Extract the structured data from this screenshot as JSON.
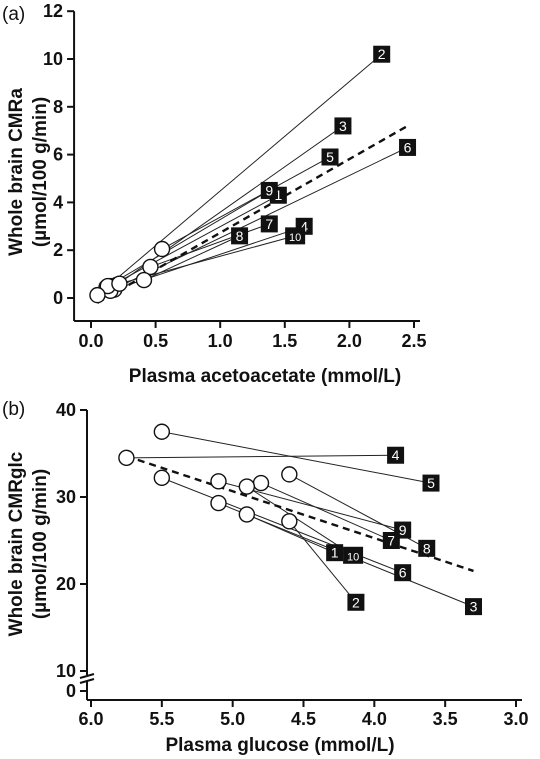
{
  "chart_data": [
    {
      "type": "scatter",
      "panel_label": "(a)",
      "title": "",
      "xlabel": "Plasma acetoacetate (mmol/L)",
      "ylabel_line1": "Whole brain CMRa",
      "ylabel_line2": "(µmol/100 g/min)",
      "xlim": [
        -0.1,
        2.5
      ],
      "ylim": [
        -0.5,
        12
      ],
      "x_ticks": [
        0.0,
        0.5,
        1.0,
        1.5,
        2.0,
        2.5
      ],
      "x_tick_labels": [
        "0.0",
        "0.5",
        "1.0",
        "1.5",
        "2.0",
        "2.5"
      ],
      "y_ticks": [
        0,
        2,
        4,
        6,
        8,
        10,
        12
      ],
      "y_tick_labels": [
        "0",
        "2",
        "4",
        "6",
        "8",
        "10",
        "12"
      ],
      "regression": {
        "x": [
          0.05,
          2.45
        ],
        "y": [
          -0.2,
          7.2
        ],
        "style": "dashed"
      },
      "subjects": [
        {
          "id": "1",
          "baseline": [
            0.15,
            0.5
          ],
          "ketosis": [
            1.45,
            4.3
          ]
        },
        {
          "id": "2",
          "baseline": [
            0.12,
            0.45
          ],
          "ketosis": [
            2.25,
            10.2
          ]
        },
        {
          "id": "3",
          "baseline": [
            0.2,
            0.55
          ],
          "ketosis": [
            1.95,
            7.2
          ]
        },
        {
          "id": "4",
          "baseline": [
            0.18,
            0.35
          ],
          "ketosis": [
            1.65,
            3.0
          ]
        },
        {
          "id": "5",
          "baseline": [
            0.55,
            2.05
          ],
          "ketosis": [
            1.85,
            5.9
          ]
        },
        {
          "id": "6",
          "baseline": [
            0.15,
            0.3
          ],
          "ketosis": [
            2.45,
            6.3
          ]
        },
        {
          "id": "7",
          "baseline": [
            0.46,
            1.3
          ],
          "ketosis": [
            1.38,
            3.1
          ]
        },
        {
          "id": "8",
          "baseline": [
            0.41,
            0.75
          ],
          "ketosis": [
            1.15,
            2.6
          ]
        },
        {
          "id": "9",
          "baseline": [
            0.13,
            0.5
          ],
          "ketosis": [
            1.38,
            4.5
          ]
        },
        {
          "id": "10",
          "baseline": [
            0.22,
            0.6
          ],
          "ketosis": [
            1.58,
            2.6
          ]
        }
      ],
      "baseline_only_points": [
        [
          0.05,
          0.12
        ]
      ]
    },
    {
      "type": "scatter",
      "panel_label": "(b)",
      "title": "",
      "xlabel": "Plasma glucose (mmol/L)",
      "ylabel_line1": "Whole brain CMRglc",
      "ylabel_line2": "(µmol/100 g/min)",
      "x_reversed": true,
      "xlim": [
        6.0,
        3.0
      ],
      "y_axis_break": true,
      "y_ticks": [
        0,
        10,
        20,
        30,
        40
      ],
      "y_tick_labels": [
        "0",
        "10",
        "20",
        "30",
        "40"
      ],
      "x_ticks": [
        6.0,
        5.5,
        5.0,
        4.5,
        4.0,
        3.5,
        3.0
      ],
      "x_tick_labels": [
        "6.0",
        "5.5",
        "5.0",
        "4.5",
        "4.0",
        "3.5",
        "3.0"
      ],
      "regression": {
        "x": [
          5.75,
          3.3
        ],
        "y": [
          34.7,
          21.5
        ],
        "style": "dashed"
      },
      "subjects": [
        {
          "id": "1",
          "baseline": [
            4.9,
            28.0
          ],
          "ketosis": [
            4.28,
            23.6
          ]
        },
        {
          "id": "2",
          "baseline": [
            4.6,
            27.2
          ],
          "ketosis": [
            4.13,
            17.9
          ]
        },
        {
          "id": "3",
          "baseline": [
            5.1,
            29.3
          ],
          "ketosis": [
            3.3,
            17.4
          ]
        },
        {
          "id": "4",
          "baseline": [
            5.75,
            34.5
          ],
          "ketosis": [
            3.85,
            34.8
          ]
        },
        {
          "id": "5",
          "baseline": [
            5.5,
            37.5
          ],
          "ketosis": [
            3.6,
            31.6
          ]
        },
        {
          "id": "6",
          "baseline": [
            5.5,
            32.2
          ],
          "ketosis": [
            3.8,
            21.3
          ]
        },
        {
          "id": "7",
          "baseline": [
            4.8,
            31.6
          ],
          "ketosis": [
            3.88,
            25.0
          ]
        },
        {
          "id": "8",
          "baseline": [
            4.6,
            32.6
          ],
          "ketosis": [
            3.63,
            24.1
          ]
        },
        {
          "id": "9",
          "baseline": [
            5.1,
            31.8
          ],
          "ketosis": [
            3.8,
            26.2
          ]
        },
        {
          "id": "10",
          "baseline": [
            4.9,
            31.2
          ],
          "ketosis": [
            4.15,
            23.3
          ]
        }
      ]
    }
  ]
}
